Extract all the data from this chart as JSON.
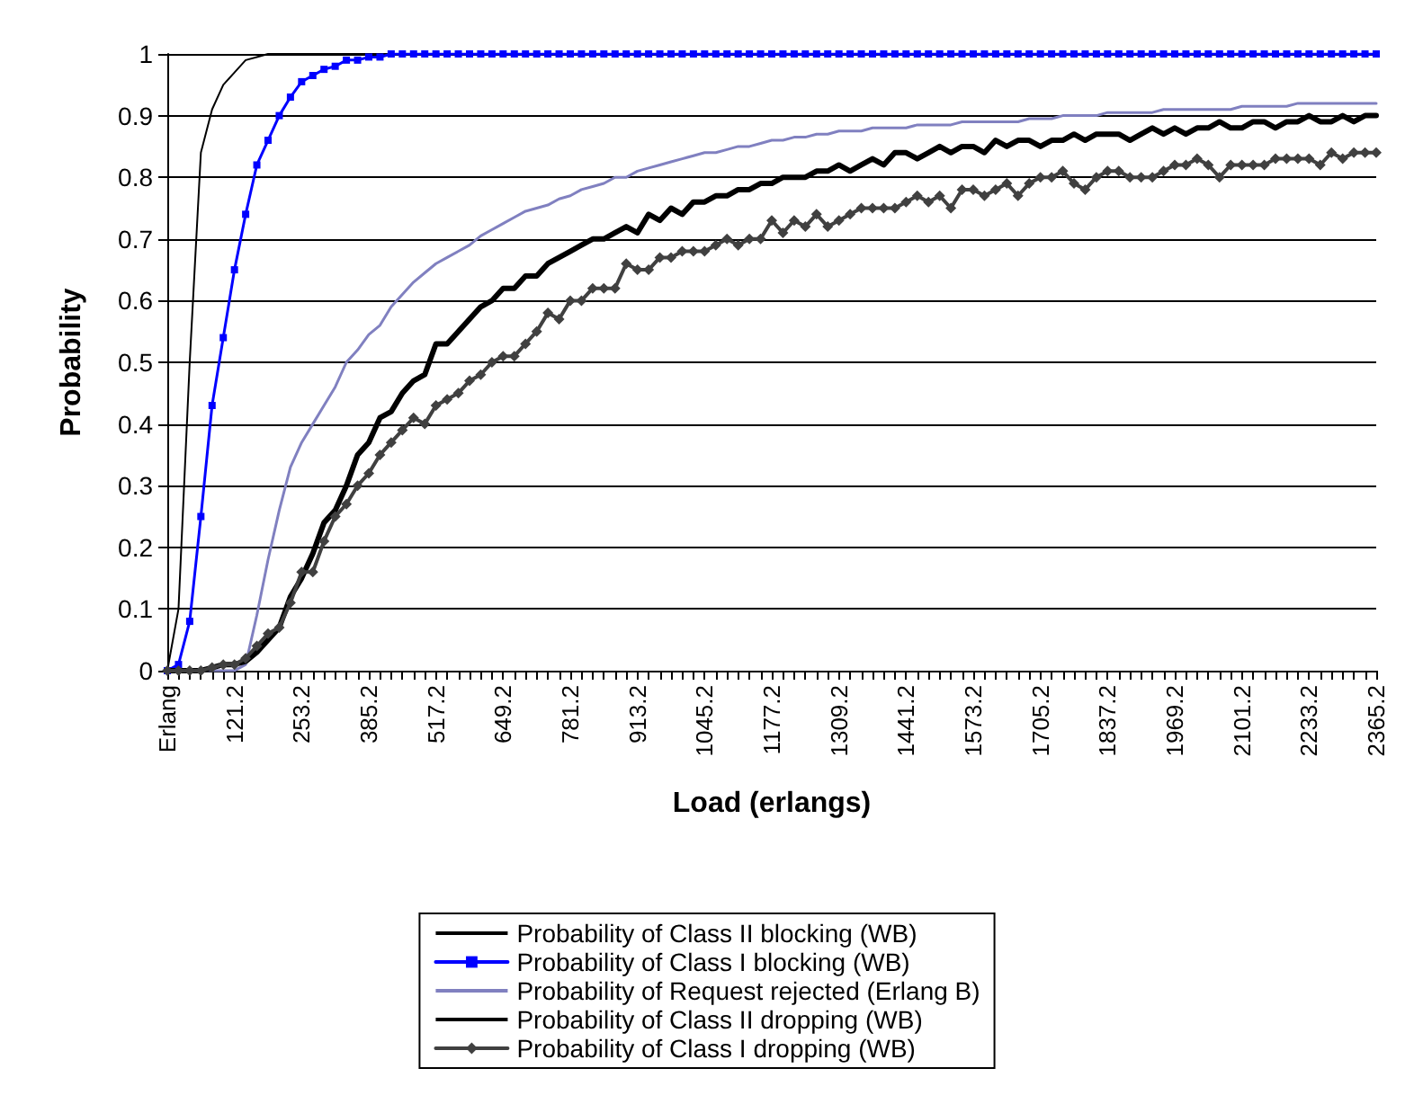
{
  "chart_data": {
    "type": "line",
    "xlabel": "Load (erlangs)",
    "ylabel": "Probability",
    "categories": [
      "Erlang",
      null,
      null,
      null,
      null,
      null,
      "121.2",
      null,
      null,
      null,
      null,
      null,
      "253.2",
      null,
      null,
      null,
      null,
      null,
      "385.2",
      null,
      null,
      null,
      null,
      null,
      "517.2",
      null,
      null,
      null,
      null,
      null,
      "649.2",
      null,
      null,
      null,
      null,
      null,
      "781.2",
      null,
      null,
      null,
      null,
      null,
      "913.2",
      null,
      null,
      null,
      null,
      null,
      "1045.2",
      null,
      null,
      null,
      null,
      null,
      "1177.2",
      null,
      null,
      null,
      null,
      null,
      "1309.2",
      null,
      null,
      null,
      null,
      null,
      "1441.2",
      null,
      null,
      null,
      null,
      null,
      "1573.2",
      null,
      null,
      null,
      null,
      null,
      "1705.2",
      null,
      null,
      null,
      null,
      null,
      "1837.2",
      null,
      null,
      null,
      null,
      null,
      "1969.2",
      null,
      null,
      null,
      null,
      null,
      "2101.2",
      null,
      null,
      null,
      null,
      null,
      "2233.2",
      null,
      null,
      null,
      null,
      null,
      "2365.2"
    ],
    "series": [
      {
        "name": "Probability of Class II blocking (WB)",
        "color": "#000000",
        "marker": "none",
        "values": [
          0,
          0.1,
          0.5,
          0.84,
          0.91,
          0.95,
          0.97,
          0.99,
          0.995,
          1,
          1,
          1,
          1,
          1,
          1,
          1,
          1,
          1,
          1,
          1,
          1,
          null,
          null,
          null,
          null,
          null,
          null,
          null,
          null,
          null,
          null,
          null,
          null,
          null,
          null,
          null,
          null,
          null,
          null,
          null,
          null,
          null,
          null,
          null,
          null,
          null,
          null,
          null,
          null,
          null,
          null,
          null,
          null,
          null,
          null,
          null,
          null,
          null,
          null,
          null,
          null,
          null,
          null,
          null,
          null,
          null,
          null,
          null,
          null,
          null,
          null,
          null,
          null,
          null,
          null,
          null,
          null,
          null,
          null,
          null,
          null,
          null,
          null,
          null,
          null,
          null,
          null,
          null,
          null,
          null,
          null,
          null,
          null,
          null,
          null,
          null,
          null,
          null,
          null,
          null,
          null,
          null,
          null,
          null,
          null,
          null,
          null,
          null,
          null
        ]
      },
      {
        "name": "Probability of Class I blocking (WB)",
        "color": "#0000ff",
        "marker": "square",
        "values": [
          0,
          0.01,
          0.08,
          0.25,
          0.43,
          0.54,
          0.65,
          0.74,
          0.82,
          0.86,
          0.9,
          0.93,
          0.955,
          0.965,
          0.975,
          0.98,
          0.99,
          0.99,
          0.995,
          0.995,
          1,
          1,
          1,
          1,
          1,
          1,
          1,
          1,
          1,
          1,
          1,
          1,
          1,
          1,
          1,
          1,
          1,
          1,
          1,
          1,
          1,
          1,
          1,
          1,
          1,
          1,
          1,
          1,
          1,
          1,
          1,
          1,
          1,
          1,
          1,
          1,
          1,
          1,
          1,
          1,
          1,
          1,
          1,
          1,
          1,
          1,
          1,
          1,
          1,
          1,
          1,
          1,
          1,
          1,
          1,
          1,
          1,
          1,
          1,
          1,
          1,
          1,
          1,
          1,
          1,
          1,
          1,
          1,
          1,
          1,
          1,
          1,
          1,
          1,
          1,
          1,
          1,
          1,
          1,
          1,
          1,
          1,
          1,
          1,
          1,
          1,
          1,
          1,
          1
        ]
      },
      {
        "name": "Probability of Request rejected (Erlang B)",
        "color": "#8080c0",
        "marker": "none",
        "values": [
          0,
          0,
          0,
          0,
          0,
          0,
          0,
          0.01,
          0.09,
          0.18,
          0.26,
          0.33,
          0.37,
          0.4,
          0.43,
          0.46,
          0.5,
          0.52,
          0.545,
          0.56,
          0.59,
          0.61,
          0.63,
          0.645,
          0.66,
          0.67,
          0.68,
          0.69,
          0.705,
          0.715,
          0.725,
          0.735,
          0.745,
          0.75,
          0.755,
          0.765,
          0.77,
          0.78,
          0.785,
          0.79,
          0.8,
          0.8,
          0.81,
          0.815,
          0.82,
          0.825,
          0.83,
          0.835,
          0.84,
          0.84,
          0.845,
          0.85,
          0.85,
          0.855,
          0.86,
          0.86,
          0.865,
          0.865,
          0.87,
          0.87,
          0.875,
          0.875,
          0.875,
          0.88,
          0.88,
          0.88,
          0.88,
          0.885,
          0.885,
          0.885,
          0.885,
          0.89,
          0.89,
          0.89,
          0.89,
          0.89,
          0.89,
          0.895,
          0.895,
          0.895,
          0.9,
          0.9,
          0.9,
          0.9,
          0.905,
          0.905,
          0.905,
          0.905,
          0.905,
          0.91,
          0.91,
          0.91,
          0.91,
          0.91,
          0.91,
          0.91,
          0.915,
          0.915,
          0.915,
          0.915,
          0.915,
          0.92,
          0.92,
          0.92,
          0.92,
          0.92,
          0.92,
          0.92,
          0.92
        ]
      },
      {
        "name": "Probability of Class II dropping (WB)",
        "color": "#000000",
        "marker": "none",
        "values": [
          0,
          0,
          0,
          0,
          0.005,
          0.01,
          0.01,
          0.015,
          0.03,
          0.05,
          0.07,
          0.12,
          0.15,
          0.19,
          0.24,
          0.26,
          0.3,
          0.35,
          0.37,
          0.41,
          0.42,
          0.45,
          0.47,
          0.48,
          0.53,
          0.53,
          0.55,
          0.57,
          0.59,
          0.6,
          0.62,
          0.62,
          0.64,
          0.64,
          0.66,
          0.67,
          0.68,
          0.69,
          0.7,
          0.7,
          0.71,
          0.72,
          0.71,
          0.74,
          0.73,
          0.75,
          0.74,
          0.76,
          0.76,
          0.77,
          0.77,
          0.78,
          0.78,
          0.79,
          0.79,
          0.8,
          0.8,
          0.8,
          0.81,
          0.81,
          0.82,
          0.81,
          0.82,
          0.83,
          0.82,
          0.84,
          0.84,
          0.83,
          0.84,
          0.85,
          0.84,
          0.85,
          0.85,
          0.84,
          0.86,
          0.85,
          0.86,
          0.86,
          0.85,
          0.86,
          0.86,
          0.87,
          0.86,
          0.87,
          0.87,
          0.87,
          0.86,
          0.87,
          0.88,
          0.87,
          0.88,
          0.87,
          0.88,
          0.88,
          0.89,
          0.88,
          0.88,
          0.89,
          0.89,
          0.88,
          0.89,
          0.89,
          0.9,
          0.89,
          0.89,
          0.9,
          0.89,
          0.9,
          0.9
        ]
      },
      {
        "name": "Probability of Class I dropping (WB)",
        "color": "#404040",
        "marker": "diamond",
        "values": [
          0,
          0,
          0,
          0,
          0.005,
          0.01,
          0.01,
          0.02,
          0.04,
          0.06,
          0.07,
          0.11,
          0.16,
          0.16,
          0.21,
          0.25,
          0.27,
          0.3,
          0.32,
          0.35,
          0.37,
          0.39,
          0.41,
          0.4,
          0.43,
          0.44,
          0.45,
          0.47,
          0.48,
          0.5,
          0.51,
          0.51,
          0.53,
          0.55,
          0.58,
          0.57,
          0.6,
          0.6,
          0.62,
          0.62,
          0.62,
          0.66,
          0.65,
          0.65,
          0.67,
          0.67,
          0.68,
          0.68,
          0.68,
          0.69,
          0.7,
          0.69,
          0.7,
          0.7,
          0.73,
          0.71,
          0.73,
          0.72,
          0.74,
          0.72,
          0.73,
          0.74,
          0.75,
          0.75,
          0.75,
          0.75,
          0.76,
          0.77,
          0.76,
          0.77,
          0.75,
          0.78,
          0.78,
          0.77,
          0.78,
          0.79,
          0.77,
          0.79,
          0.8,
          0.8,
          0.81,
          0.79,
          0.78,
          0.8,
          0.81,
          0.81,
          0.8,
          0.8,
          0.8,
          0.81,
          0.82,
          0.82,
          0.83,
          0.82,
          0.8,
          0.82,
          0.82,
          0.82,
          0.82,
          0.83,
          0.83,
          0.83,
          0.83,
          0.82,
          0.84,
          0.83,
          0.84,
          0.84,
          0.84
        ]
      }
    ],
    "ylim": [
      0,
      1
    ],
    "yticks": [
      0,
      0.1,
      0.2,
      0.3,
      0.4,
      0.5,
      0.6,
      0.7,
      0.8,
      0.9,
      1
    ],
    "grid": "y",
    "legend": "bottom"
  }
}
